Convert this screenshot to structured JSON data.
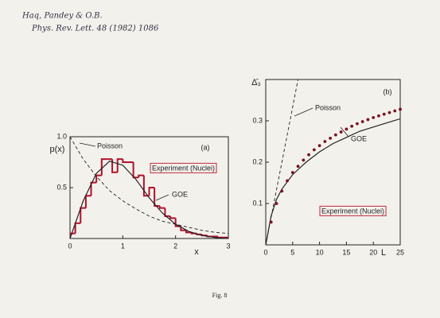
{
  "header": {
    "lines": [
      "Haq, Pandey & O.B.",
      "Phys. Rev. Lett. 48 (1982) 1086"
    ]
  },
  "caption": "Fig. 8",
  "chart_data": [
    {
      "type": "histogram",
      "ylabel": "p(x)",
      "xlabel": "x",
      "annotations": [
        "(a)",
        "Poisson",
        "Experiment (Nuclei)",
        "GOE"
      ],
      "xlim": [
        0,
        3
      ],
      "ylim": [
        0,
        1.0
      ],
      "xticks": [
        0,
        1,
        2,
        3
      ],
      "yticks": [
        0.5,
        {
          "value": 1.0,
          "label": "1.0"
        }
      ],
      "hist_color": "#b0122a",
      "bins": [
        0,
        0.1,
        0.2,
        0.3,
        0.4,
        0.5,
        0.6,
        0.7,
        0.8,
        0.9,
        1.0,
        1.1,
        1.2,
        1.3,
        1.4,
        1.5,
        1.6,
        1.7,
        1.8,
        1.9,
        2.0,
        2.1,
        2.2,
        2.3,
        2.4,
        2.5,
        2.6,
        2.7,
        2.8,
        2.9,
        3.0
      ],
      "counts": [
        0.05,
        0.15,
        0.3,
        0.42,
        0.55,
        0.62,
        0.78,
        0.78,
        0.65,
        0.78,
        0.75,
        0.75,
        0.6,
        0.62,
        0.42,
        0.5,
        0.32,
        0.3,
        0.22,
        0.2,
        0.12,
        0.08,
        0.06,
        0.05,
        0.04,
        0.03,
        0.02,
        0.02,
        0.01,
        0.01
      ],
      "series": [
        {
          "name": "Poisson",
          "color": "#222",
          "dashed": true,
          "x": [
            0,
            0.25,
            0.5,
            0.75,
            1,
            1.25,
            1.5,
            1.75,
            2,
            2.25,
            2.5,
            2.75,
            3
          ],
          "values": [
            1,
            0.78,
            0.61,
            0.47,
            0.37,
            0.29,
            0.22,
            0.17,
            0.14,
            0.11,
            0.08,
            0.06,
            0.05
          ]
        },
        {
          "name": "GOE",
          "color": "#222",
          "dashed": false,
          "x": [
            0,
            0.25,
            0.5,
            0.75,
            1,
            1.25,
            1.5,
            1.75,
            2,
            2.25,
            2.5,
            2.75,
            3
          ],
          "values": [
            0,
            0.37,
            0.64,
            0.76,
            0.72,
            0.58,
            0.4,
            0.25,
            0.14,
            0.07,
            0.03,
            0.01,
            0
          ]
        }
      ]
    },
    {
      "type": "line",
      "ylabel": "Δ̄₃",
      "xlabel": "L",
      "annotations": [
        "(b)",
        "Poisson",
        "GOE",
        "Experiment (Nuclei)"
      ],
      "xlim": [
        0,
        25
      ],
      "ylim": [
        0,
        0.4
      ],
      "xticks": [
        0,
        5,
        10,
        15,
        20,
        25
      ],
      "yticks": [
        0.1,
        0.2,
        0.3
      ],
      "series": [
        {
          "name": "Poisson",
          "color": "#222",
          "dashed": true,
          "x": [
            0,
            6
          ],
          "values": [
            0,
            0.4
          ]
        },
        {
          "name": "GOE",
          "color": "#222",
          "dashed": false,
          "x": [
            0,
            1,
            2,
            3,
            5,
            7.5,
            10,
            12.5,
            15,
            17.5,
            20,
            22.5,
            25
          ],
          "values": [
            0,
            0.07,
            0.11,
            0.135,
            0.17,
            0.2,
            0.225,
            0.245,
            0.26,
            0.275,
            0.285,
            0.295,
            0.305
          ]
        },
        {
          "name": "Experiment (Nuclei)",
          "color": "#7a0f1c",
          "marker": "dot",
          "x": [
            1,
            2,
            3,
            4,
            5,
            6,
            7,
            8,
            9,
            10,
            11,
            12,
            13,
            14,
            15,
            16,
            17,
            18,
            19,
            20,
            21,
            22,
            23,
            24,
            25
          ],
          "values": [
            0.055,
            0.1,
            0.13,
            0.155,
            0.175,
            0.19,
            0.205,
            0.218,
            0.23,
            0.24,
            0.25,
            0.258,
            0.266,
            0.273,
            0.28,
            0.287,
            0.293,
            0.298,
            0.303,
            0.308,
            0.312,
            0.316,
            0.32,
            0.324,
            0.328
          ]
        }
      ]
    }
  ]
}
